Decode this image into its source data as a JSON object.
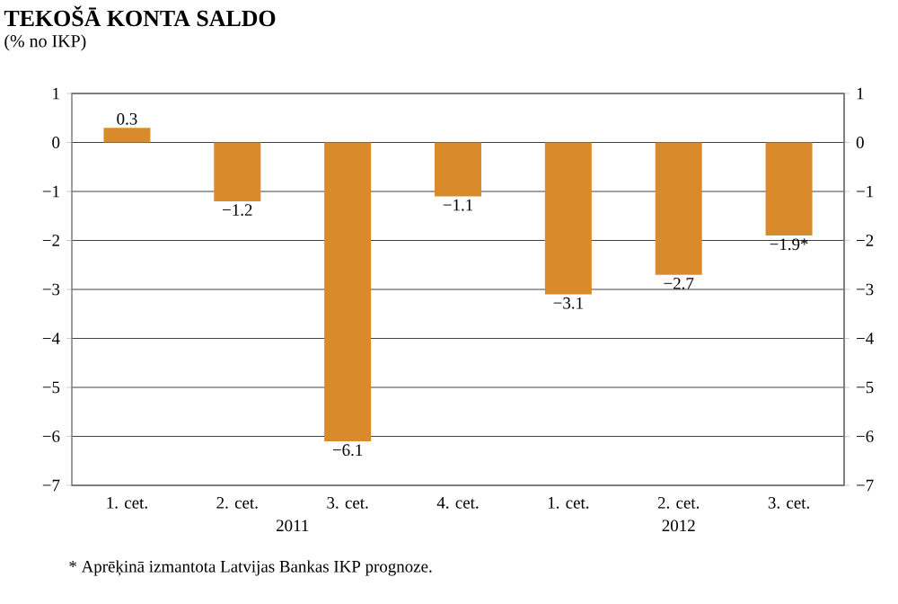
{
  "chart_data": {
    "type": "bar",
    "title": "TEKOŠĀ KONTA SALDO",
    "subtitle": "(% no IKP)",
    "categories": [
      "1. cet.",
      "2. cet.",
      "3. cet.",
      "4. cet.",
      "1. cet.",
      "2. cet.",
      "3. cet."
    ],
    "values": [
      0.3,
      -1.2,
      -6.1,
      -1.1,
      -3.1,
      -2.7,
      -1.9
    ],
    "value_labels": [
      "0.3",
      "−1.2",
      "−6.1",
      "−1.1",
      "−3.1",
      "−2.7",
      "−1.9*"
    ],
    "color": "#d98b2b",
    "ylim": [
      -7,
      1
    ],
    "yticks": [
      {
        "value": -7,
        "label": "−7"
      },
      {
        "value": -6,
        "label": "−6"
      },
      {
        "value": -5,
        "label": "−5"
      },
      {
        "value": -4,
        "label": "−4"
      },
      {
        "value": -3,
        "label": "−3"
      },
      {
        "value": -2,
        "label": "−2"
      },
      {
        "value": -1,
        "label": "−1"
      },
      0,
      1
    ],
    "y2lim": [
      -7,
      1
    ],
    "y2ticks": [
      {
        "value": -7,
        "label": "−7"
      },
      {
        "value": -6,
        "label": "−6"
      },
      {
        "value": -5,
        "label": "−5"
      },
      {
        "value": -4,
        "label": "−4"
      },
      {
        "value": -3,
        "label": "−3"
      },
      {
        "value": -2,
        "label": "−2"
      },
      {
        "value": -1,
        "label": "−1"
      },
      0,
      1
    ],
    "grid": "y",
    "annotations": [
      "2011",
      "2012",
      "* Aprēķinā izmantota Latvijas Bankas IKP prognoze."
    ]
  }
}
